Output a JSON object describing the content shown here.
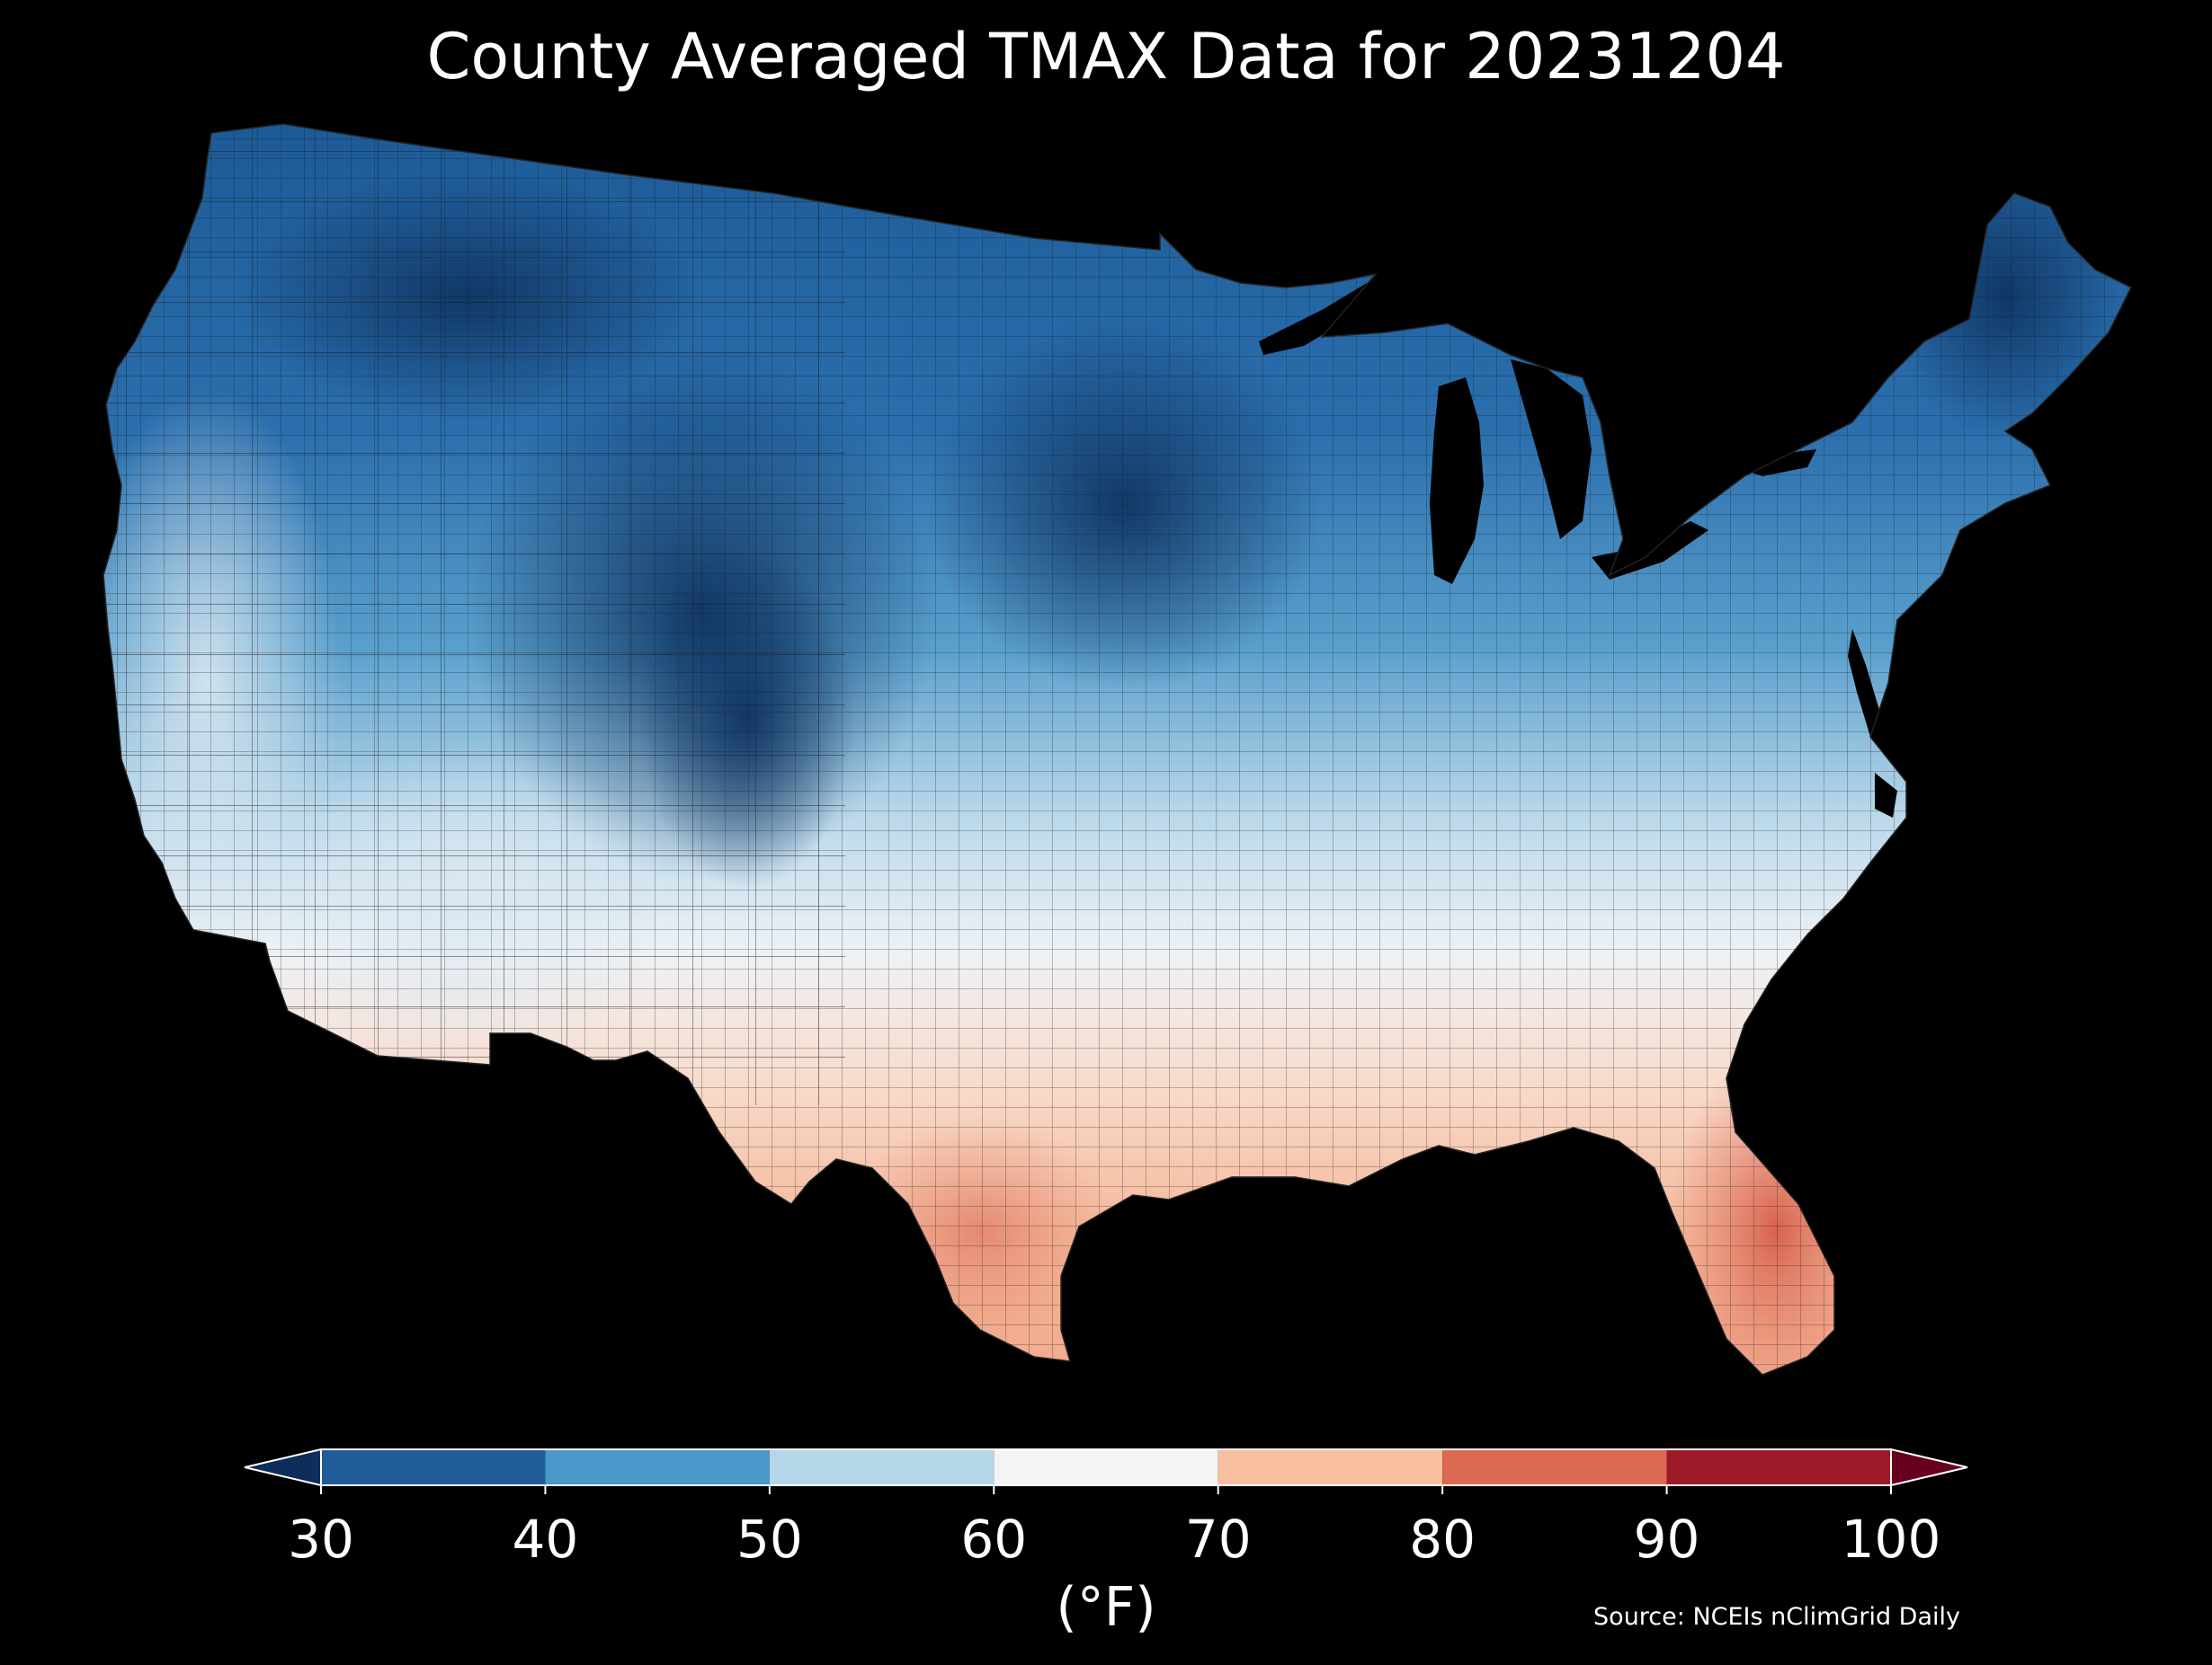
{
  "title": "County Averaged TMAX Data for 20231204",
  "colorbar": {
    "unit": "(°F)",
    "ticks": [
      "30",
      "40",
      "50",
      "60",
      "70",
      "80",
      "90",
      "100"
    ],
    "bins": [
      {
        "from": 30,
        "to": 40,
        "color": "#1f5c99"
      },
      {
        "from": 40,
        "to": 50,
        "color": "#4a97c9"
      },
      {
        "from": 50,
        "to": 60,
        "color": "#b5d6e9"
      },
      {
        "from": 60,
        "to": 70,
        "color": "#f4f4f4"
      },
      {
        "from": 70,
        "to": 80,
        "color": "#f8bfa1"
      },
      {
        "from": 80,
        "to": 90,
        "color": "#dc6a53"
      },
      {
        "from": 90,
        "to": 100,
        "color": "#9e1a29"
      }
    ],
    "under_color": "#0d2d5b",
    "over_color": "#67001f",
    "extend": "both"
  },
  "source": "Source: NCEIs nClimGrid Daily",
  "map": {
    "region": "Contiguous United States counties",
    "variable": "TMAX",
    "date": "20231204",
    "background_color": "#000000",
    "county_border_color": "#1a1a1a",
    "regional_pattern": [
      {
        "region": "Northern Plains / Montana / Minnesota",
        "approx_value_f": 35
      },
      {
        "region": "Central Rockies / Colorado",
        "approx_value_f": 33
      },
      {
        "region": "Pacific Northwest interior",
        "approx_value_f": 42
      },
      {
        "region": "Great Lakes / Michigan",
        "approx_value_f": 38
      },
      {
        "region": "New England / Maine",
        "approx_value_f": 36
      },
      {
        "region": "Mid-Atlantic / Ohio Valley",
        "approx_value_f": 55
      },
      {
        "region": "California coast",
        "approx_value_f": 60
      },
      {
        "region": "Southern Plains / Oklahoma",
        "approx_value_f": 64
      },
      {
        "region": "Desert Southwest",
        "approx_value_f": 68
      },
      {
        "region": "Texas",
        "approx_value_f": 73
      },
      {
        "region": "Gulf Coast",
        "approx_value_f": 75
      },
      {
        "region": "Carolinas coast",
        "approx_value_f": 72
      },
      {
        "region": "Florida",
        "approx_value_f": 83
      }
    ]
  }
}
